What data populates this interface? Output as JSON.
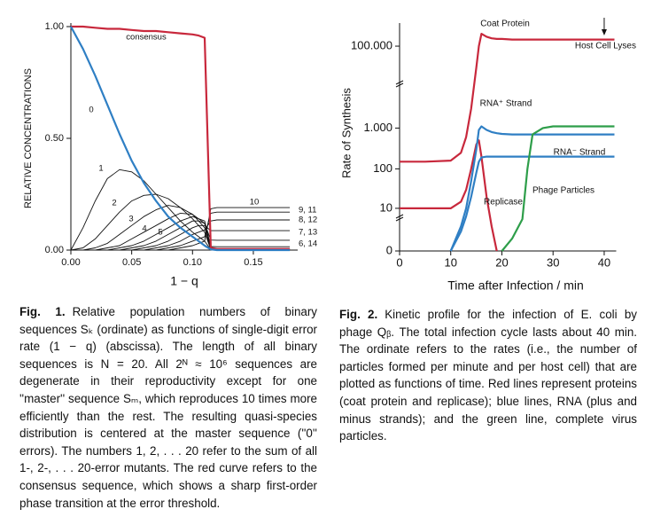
{
  "chart_data": [
    {
      "type": "line",
      "ylabel": "RELATIVE CONCENTRATIONS",
      "xlabel": "1 − q",
      "xlim": [
        0,
        0.185
      ],
      "ylim": [
        0,
        1
      ],
      "xticks": [
        {
          "value": 0,
          "label": "0.00"
        },
        0.05,
        {
          "value": 0.1,
          "label": "0.10"
        },
        0.15
      ],
      "yticks": [
        {
          "value": 0,
          "label": "0.00"
        },
        {
          "value": 0.5,
          "label": "0.50"
        },
        {
          "value": 1,
          "label": "1.00"
        }
      ],
      "x": [
        0,
        0.01,
        0.02,
        0.03,
        0.04,
        0.05,
        0.06,
        0.07,
        0.08,
        0.09,
        0.1,
        0.105,
        0.11,
        0.115,
        0.12,
        0.13,
        0.14,
        0.15,
        0.16,
        0.17,
        0.18
      ],
      "series": [
        {
          "name": "consensus",
          "color": "#c8283c",
          "values": [
            1,
            1,
            0.995,
            0.99,
            0.99,
            0.985,
            0.98,
            0.98,
            0.975,
            0.97,
            0.965,
            0.96,
            0.95,
            0.01,
            0.005,
            0.005,
            0.005,
            0.005,
            0.005,
            0.005,
            0.005
          ]
        },
        {
          "name": "0",
          "color": "#2f7fc4",
          "values": [
            1,
            0.9,
            0.78,
            0.65,
            0.52,
            0.4,
            0.3,
            0.22,
            0.15,
            0.1,
            0.06,
            0.04,
            0.02,
            0.003,
            0,
            0,
            0,
            0,
            0,
            0,
            0
          ]
        },
        {
          "name": "1",
          "color": "#111111",
          "values": [
            0,
            0.1,
            0.22,
            0.32,
            0.36,
            0.35,
            0.31,
            0.25,
            0.19,
            0.13,
            0.08,
            0.06,
            0.04,
            0.002,
            0,
            0,
            0,
            0,
            0,
            0,
            0
          ]
        },
        {
          "name": "2",
          "color": "#111111",
          "values": [
            0,
            0.01,
            0.05,
            0.11,
            0.17,
            0.22,
            0.245,
            0.25,
            0.23,
            0.19,
            0.14,
            0.11,
            0.08,
            0.002,
            0,
            0,
            0,
            0,
            0,
            0,
            0
          ]
        },
        {
          "name": "3",
          "color": "#111111",
          "values": [
            0,
            0,
            0.01,
            0.03,
            0.07,
            0.11,
            0.15,
            0.18,
            0.2,
            0.19,
            0.16,
            0.13,
            0.1,
            0.003,
            0.002,
            0.002,
            0.002,
            0.002,
            0.002,
            0.002,
            0.002
          ]
        },
        {
          "name": "4",
          "color": "#111111",
          "values": [
            0,
            0,
            0,
            0.01,
            0.02,
            0.05,
            0.08,
            0.11,
            0.14,
            0.165,
            0.16,
            0.14,
            0.12,
            0.006,
            0.005,
            0.005,
            0.005,
            0.005,
            0.005,
            0.005,
            0.005
          ]
        },
        {
          "name": "5",
          "color": "#111111",
          "values": [
            0,
            0,
            0,
            0,
            0.01,
            0.02,
            0.04,
            0.07,
            0.1,
            0.13,
            0.15,
            0.14,
            0.13,
            0.016,
            0.015,
            0.015,
            0.015,
            0.015,
            0.015,
            0.015,
            0.015
          ]
        },
        {
          "name": "6, 14",
          "color": "#111111",
          "values": [
            0,
            0,
            0,
            0,
            0,
            0.01,
            0.02,
            0.04,
            0.07,
            0.1,
            0.13,
            0.13,
            0.12,
            0.045,
            0.044,
            0.044,
            0.044,
            0.044,
            0.044,
            0.044,
            0.044
          ]
        },
        {
          "name": "7, 13",
          "color": "#111111",
          "values": [
            0,
            0,
            0,
            0,
            0,
            0,
            0.01,
            0.02,
            0.04,
            0.07,
            0.1,
            0.11,
            0.11,
            0.087,
            0.087,
            0.087,
            0.087,
            0.087,
            0.087,
            0.087,
            0.087
          ]
        },
        {
          "name": "8, 12",
          "color": "#111111",
          "values": [
            0,
            0,
            0,
            0,
            0,
            0,
            0,
            0.01,
            0.02,
            0.04,
            0.07,
            0.08,
            0.09,
            0.13,
            0.135,
            0.135,
            0.135,
            0.135,
            0.135,
            0.135,
            0.135
          ]
        },
        {
          "name": "9, 11",
          "color": "#111111",
          "values": [
            0,
            0,
            0,
            0,
            0,
            0,
            0,
            0,
            0.01,
            0.02,
            0.04,
            0.05,
            0.06,
            0.165,
            0.17,
            0.17,
            0.17,
            0.17,
            0.17,
            0.17,
            0.17
          ]
        },
        {
          "name": "10",
          "color": "#111111",
          "values": [
            0,
            0,
            0,
            0,
            0,
            0,
            0,
            0,
            0,
            0.01,
            0.02,
            0.03,
            0.04,
            0.185,
            0.19,
            0.19,
            0.19,
            0.19,
            0.19,
            0.19,
            0.19
          ]
        }
      ]
    },
    {
      "type": "line",
      "ylabel": "Rate of Synthesis",
      "xlabel": "Time after Infection / min",
      "yscale": "symlog",
      "xlim": [
        0,
        42
      ],
      "ylim": [
        0,
        300000
      ],
      "xticks": [
        0,
        10,
        20,
        30,
        40
      ],
      "yticks": [
        0,
        10,
        100,
        {
          "value": 1000,
          "label": "1.000"
        },
        {
          "value": 100000,
          "label": "100.000"
        }
      ],
      "x": [
        0,
        5,
        10,
        12,
        13,
        14,
        15,
        15.5,
        16,
        17,
        18,
        19,
        20,
        22,
        24,
        25,
        26,
        28,
        30,
        35,
        40,
        42
      ],
      "series": [
        {
          "name": "Coat Protein",
          "color": "#c8283c",
          "values": [
            150,
            150,
            160,
            250,
            600,
            3000,
            30000,
            100000,
            200000,
            170000,
            155000,
            150000,
            150000,
            145000,
            145000,
            145000,
            145000,
            145000,
            145000,
            145000,
            145000,
            145000
          ]
        },
        {
          "name": "Replicase",
          "color": "#c8283c",
          "values": [
            10,
            10,
            10,
            15,
            30,
            100,
            400,
            500,
            200,
            20,
            3,
            0,
            null,
            null,
            null,
            null,
            null,
            null,
            null,
            null,
            null,
            null
          ]
        },
        {
          "name": "RNA⁺ Strand",
          "color": "#2f7fc4",
          "values": [
            null,
            null,
            0,
            3,
            10,
            50,
            300,
            900,
            1100,
            900,
            800,
            750,
            720,
            700,
            700,
            700,
            700,
            700,
            700,
            700,
            700,
            700
          ]
        },
        {
          "name": "RNA⁻ Strand",
          "color": "#2f7fc4",
          "values": [
            null,
            null,
            0,
            2,
            6,
            20,
            80,
            150,
            190,
            200,
            200,
            200,
            200,
            200,
            200,
            200,
            200,
            200,
            200,
            200,
            200,
            200
          ]
        },
        {
          "name": "Phage Particles",
          "color": "#2e9e4a",
          "values": [
            null,
            null,
            null,
            null,
            null,
            null,
            null,
            null,
            null,
            null,
            null,
            null,
            0,
            1,
            5,
            100,
            700,
            1000,
            1100,
            1100,
            1100,
            1100
          ]
        }
      ],
      "annotations": [
        {
          "text": "Host Cell Lyses",
          "x": 40
        }
      ]
    }
  ],
  "captions": [
    {
      "label": "Fig. 1.",
      "text": "Relative population numbers of binary sequences Sₖ (ordinate) as functions of single-digit error rate (1 − q) (abscissa). The length of all binary sequences is N = 20. All 2ᴺ ≈ 10⁶ sequences are degenerate in their reproductivity except for one ''master'' sequence Sₘ, which reproduces 10 times more efficiently than the rest. The resulting quasi-species distribution is centered at the master sequence (''0'' errors). The numbers 1, 2, . . . 20 refer to the sum of all 1-, 2-, . . . 20-error mutants. The red curve refers to the consensus sequence, which shows a sharp first-order phase transition at the error threshold."
    },
    {
      "label": "Fig. 2.",
      "text": "Kinetic profile for the infection of E. coli by phage Qᵦ. The total infection cycle lasts about 40 min. The ordinate refers to the rates (i.e., the number of particles formed per minute and per host cell) that are plotted as functions of time. Red lines represent proteins (coat protein and replicase); blue lines, RNA (plus and minus strands); and the green line, complete virus particles."
    }
  ]
}
